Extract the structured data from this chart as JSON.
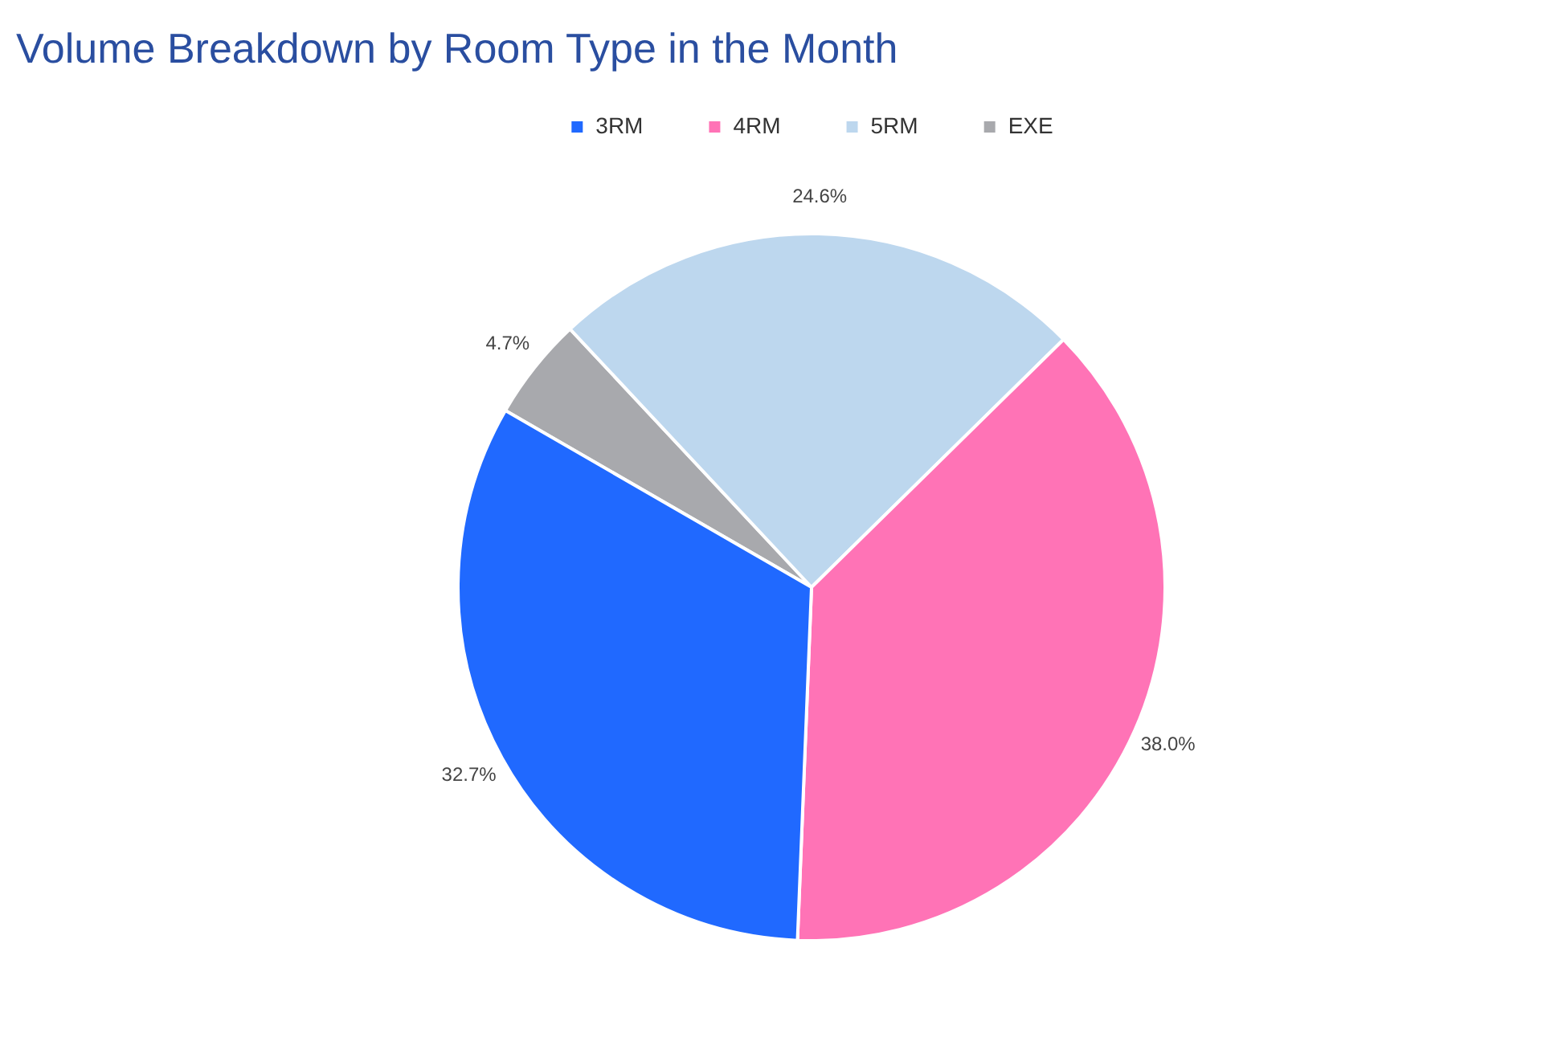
{
  "chart_data": {
    "type": "pie",
    "title": "Volume Breakdown by Room Type in the Month",
    "categories": [
      "3RM",
      "4RM",
      "5RM",
      "EXE"
    ],
    "values": [
      32.7,
      38.0,
      24.6,
      4.7
    ],
    "colors": [
      "#2069ff",
      "#ff73b6",
      "#bdd7ee",
      "#a8a9ad"
    ],
    "value_labels": [
      "32.7%",
      "38.0%",
      "24.6%",
      "4.7%"
    ],
    "legend": "top"
  }
}
